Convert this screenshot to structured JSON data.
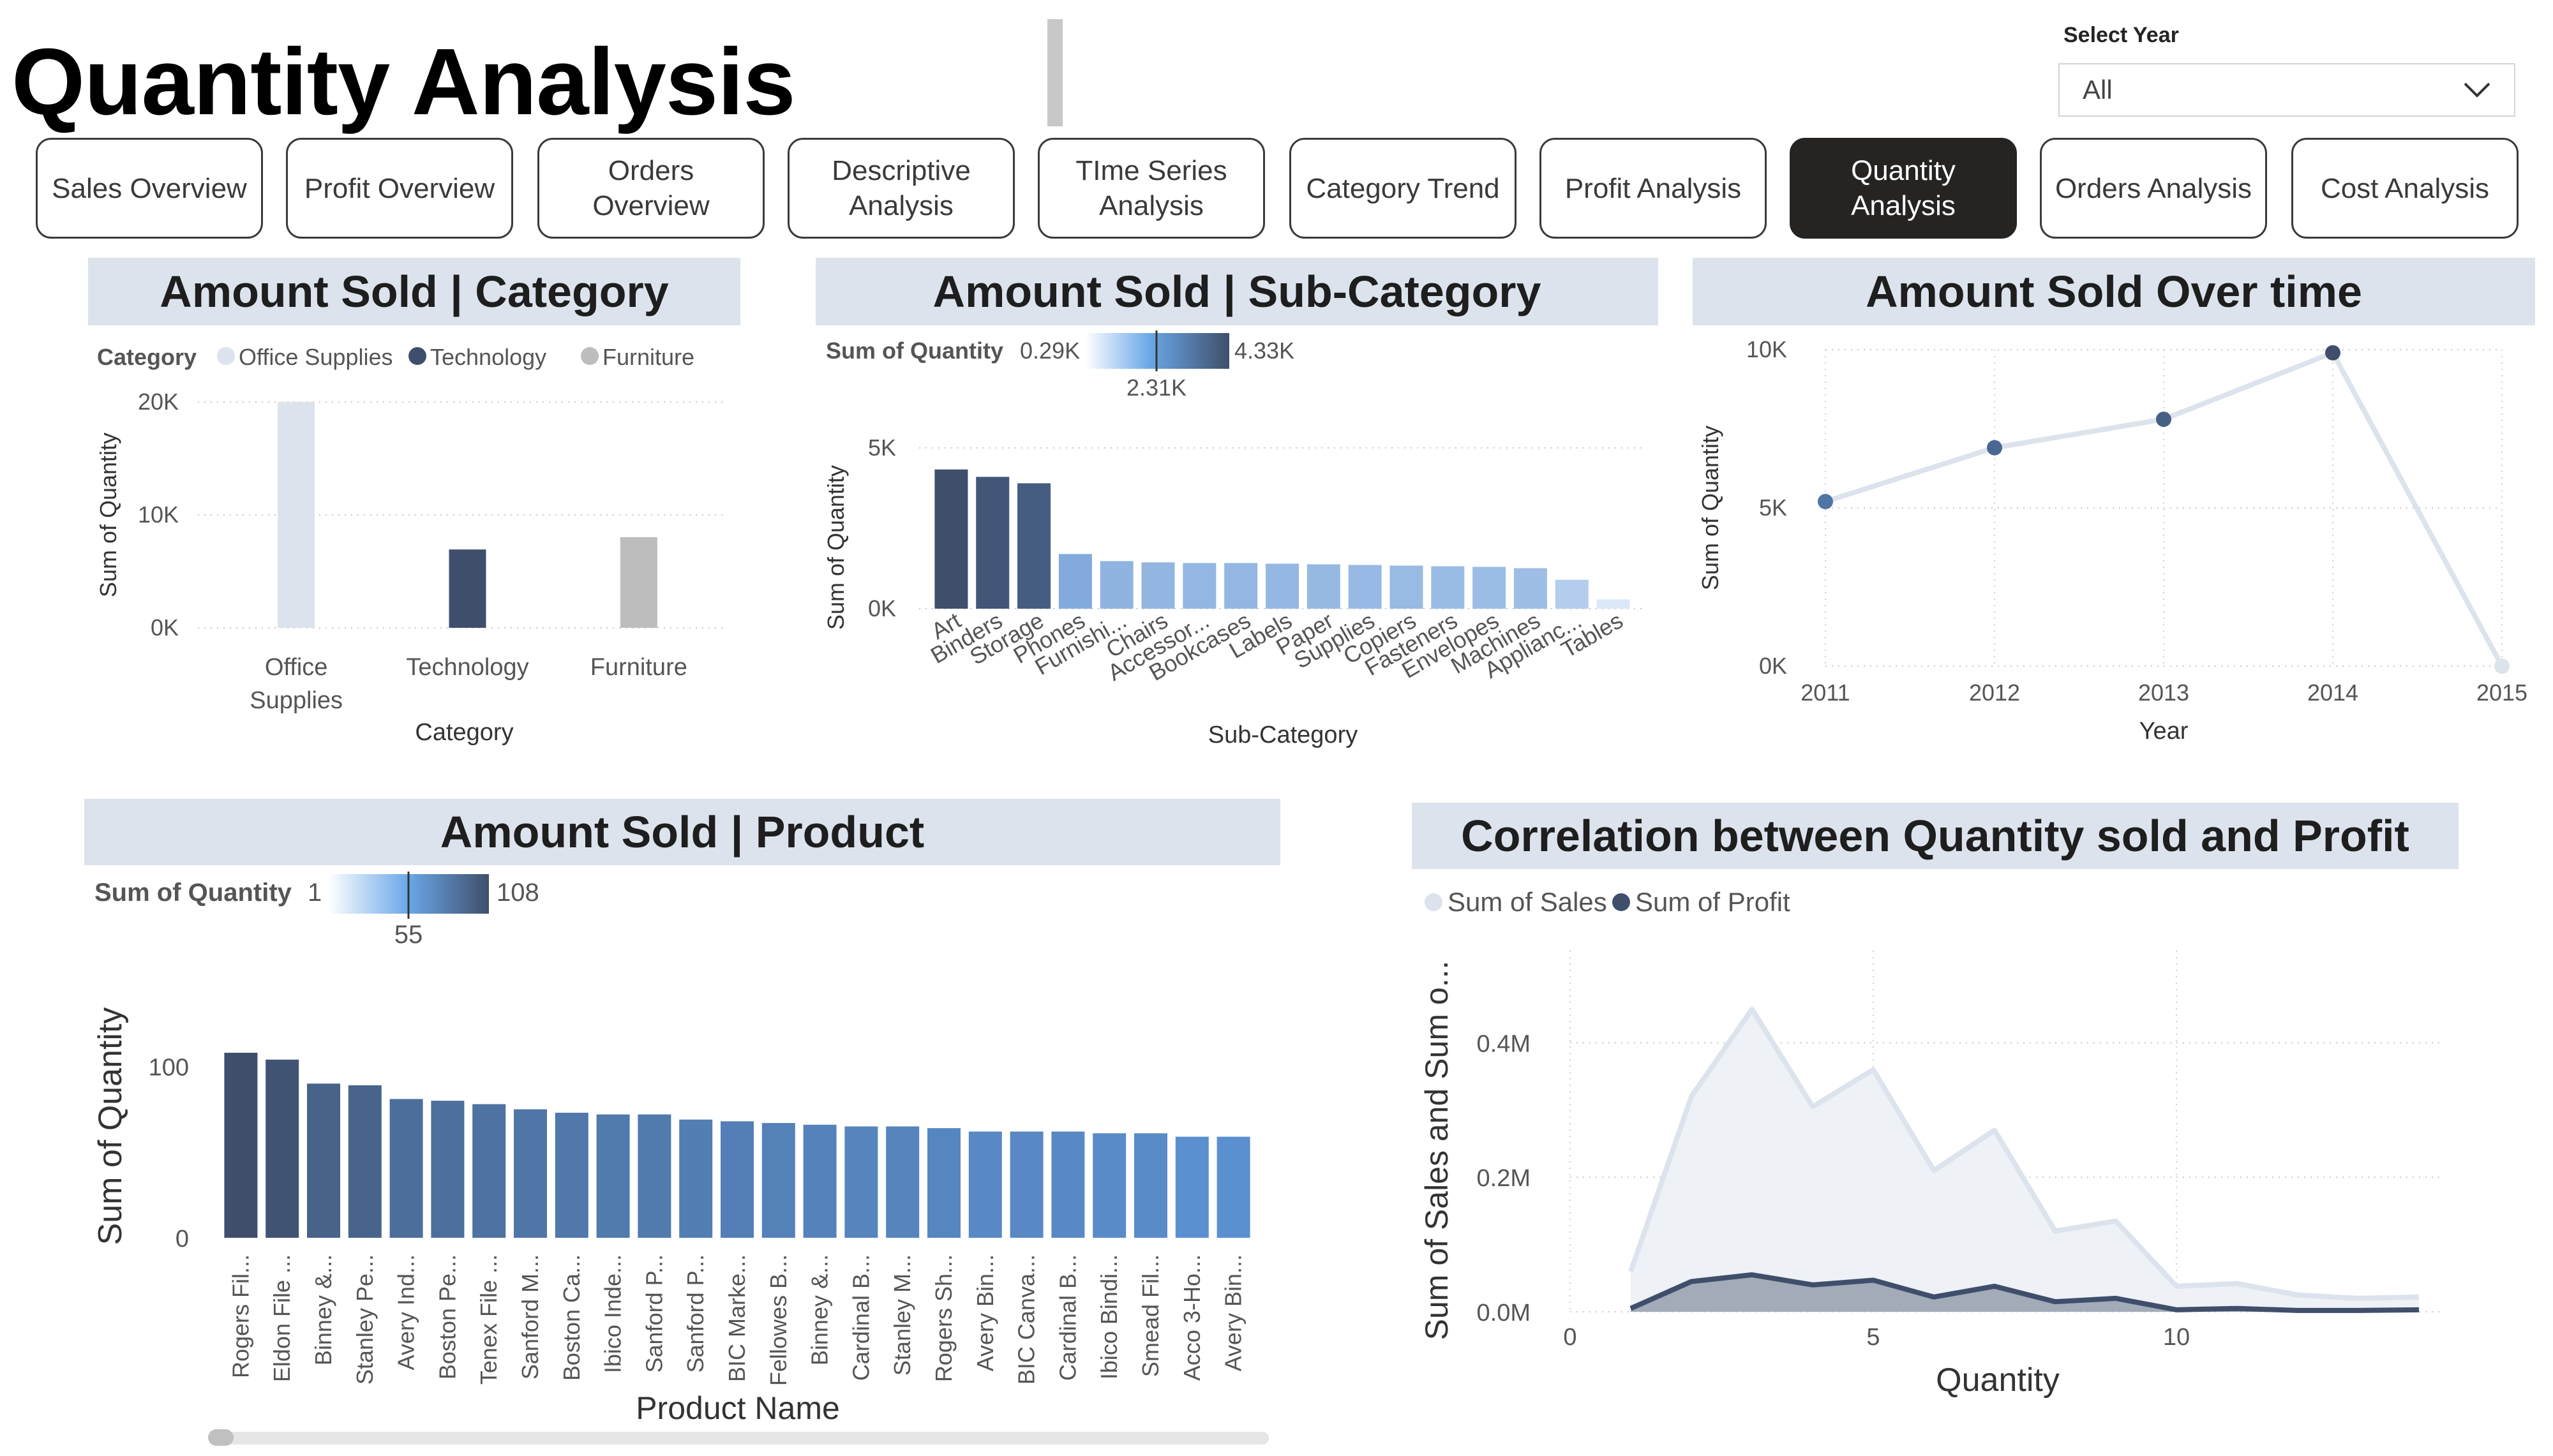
{
  "page": {
    "title": "Quantity Analysis"
  },
  "filter": {
    "label": "Select Year",
    "value": "All"
  },
  "nav": [
    {
      "label": "Sales Overview"
    },
    {
      "label": "Profit Overview"
    },
    {
      "label": "Orders Overview"
    },
    {
      "label": "Descriptive\nAnalysis"
    },
    {
      "label": "TIme Series\nAnalysis"
    },
    {
      "label": "Category Trend"
    },
    {
      "label": "Profit Analysis"
    },
    {
      "label": "Quantity Analysis",
      "active": true
    },
    {
      "label": "Orders Analysis"
    },
    {
      "label": "Cost Analysis"
    }
  ],
  "panels": {
    "category": "Amount Sold | Category",
    "subcategory": "Amount Sold | Sub-Category",
    "overtime": "Amount Sold Over time",
    "product": "Amount Sold | Product",
    "correlation": "Correlation between Quantity sold and Profit"
  },
  "colors": {
    "dark": "#3f4f6b",
    "mid": "#5b88c0",
    "light": "#8db8e8",
    "pale": "#dce3ec",
    "grey": "#bdbdbd"
  },
  "chart_data": [
    {
      "id": "category",
      "type": "bar",
      "title": "Amount Sold | Category",
      "legend_title": "Category",
      "categories": [
        "Office\nSupplies",
        "Technology",
        "Furniture"
      ],
      "legend": [
        "Office Supplies",
        "Technology",
        "Furniture"
      ],
      "legend_colors": [
        "#dce3ec",
        "#3f4f6b",
        "#bdbdbd"
      ],
      "values": [
        22906,
        6939,
        8028
      ],
      "colors": [
        "#dce3ec",
        "#3f4f6b",
        "#bdbdbd"
      ],
      "xlabel": "Category",
      "ylabel": "Sum of Quantity",
      "yticks": [
        "0K",
        "10K",
        "20K"
      ],
      "ylim": [
        0,
        20000
      ],
      "grid": true,
      "legend_position": "top-left"
    },
    {
      "id": "subcategory",
      "type": "bar",
      "title": "Amount Sold | Sub-Category",
      "color_scale": {
        "label": "Sum of Quantity",
        "min": "0.29K",
        "mid": "2.31K",
        "max": "4.33K"
      },
      "categories": [
        "Art",
        "Binders",
        "Storage",
        "Phones",
        "Furnishi...",
        "Chairs",
        "Accessor...",
        "Bookcases",
        "Labels",
        "Paper",
        "Supplies",
        "Copiers",
        "Fasteners",
        "Envelopes",
        "Machines",
        "Applianc...",
        "Tables"
      ],
      "values": [
        4330,
        4100,
        3900,
        1700,
        1480,
        1440,
        1420,
        1420,
        1400,
        1380,
        1360,
        1340,
        1320,
        1300,
        1260,
        900,
        290
      ],
      "xlabel": "Sub-Category",
      "ylabel": "Sum of Quantity",
      "yticks": [
        "0K",
        "5K"
      ],
      "ylim": [
        0,
        5000
      ],
      "grid": true
    },
    {
      "id": "overtime",
      "type": "line",
      "title": "Amount Sold Over time",
      "x": [
        "2011",
        "2012",
        "2013",
        "2014",
        "2015"
      ],
      "values": [
        5200,
        6900,
        7800,
        9900,
        0
      ],
      "xlabel": "Year",
      "ylabel": "Sum of Quantity",
      "yticks": [
        "0K",
        "5K",
        "10K"
      ],
      "ylim": [
        0,
        10000
      ],
      "grid": true
    },
    {
      "id": "product",
      "type": "bar",
      "title": "Amount Sold | Product",
      "color_scale": {
        "label": "Sum of Quantity",
        "min": "1",
        "mid": "55",
        "max": "108"
      },
      "categories": [
        "Rogers Fil...",
        "Eldon File ...",
        "Binney &...",
        "Stanley Pe...",
        "Avery Ind...",
        "Boston Pe...",
        "Tenex File ...",
        "Sanford M...",
        "Boston Ca...",
        "Ibico Inde...",
        "Sanford P...",
        "Sanford P...",
        "BIC Marke...",
        "Fellowes B...",
        "Binney &...",
        "Cardinal B...",
        "Stanley M...",
        "Rogers Sh...",
        "Avery Bin...",
        "BIC Canva...",
        "Cardinal B...",
        "Ibico Bindi...",
        "Smead Fil...",
        "Acco 3-Ho...",
        "Avery Bin..."
      ],
      "values": [
        108,
        104,
        90,
        89,
        81,
        80,
        78,
        75,
        73,
        72,
        72,
        69,
        68,
        67,
        66,
        65,
        65,
        64,
        62,
        62,
        62,
        61,
        61,
        59,
        59
      ],
      "xlabel": "Product Name",
      "ylabel": "Sum of Quantity",
      "yticks": [
        "0",
        "100"
      ],
      "ylim": [
        0,
        108
      ],
      "grid": true
    },
    {
      "id": "correlation",
      "type": "area",
      "title": "Correlation between Quantity sold and Profit",
      "x": [
        1,
        2,
        3,
        4,
        5,
        6,
        7,
        8,
        9,
        10,
        11,
        12,
        13,
        14
      ],
      "series": [
        {
          "name": "Sum of Sales",
          "color": "#dce3ec",
          "values": [
            60000,
            320000,
            450000,
            305000,
            360000,
            210000,
            270000,
            120000,
            135000,
            38000,
            42000,
            25000,
            20000,
            22000
          ]
        },
        {
          "name": "Sum of Profit",
          "color": "#3f4f6b",
          "values": [
            5000,
            45000,
            55000,
            40000,
            47000,
            22000,
            38000,
            15000,
            20000,
            3000,
            5000,
            2000,
            2000,
            3000
          ]
        }
      ],
      "xlabel": "Quantity",
      "ylabel": "Sum of Sales and Sum o...",
      "xticks": [
        "0",
        "5",
        "10"
      ],
      "yticks": [
        "0.0M",
        "0.2M",
        "0.4M"
      ],
      "ylim": [
        0,
        450000
      ],
      "xlim": [
        0,
        14
      ],
      "grid": true,
      "legend_position": "top-left"
    }
  ]
}
